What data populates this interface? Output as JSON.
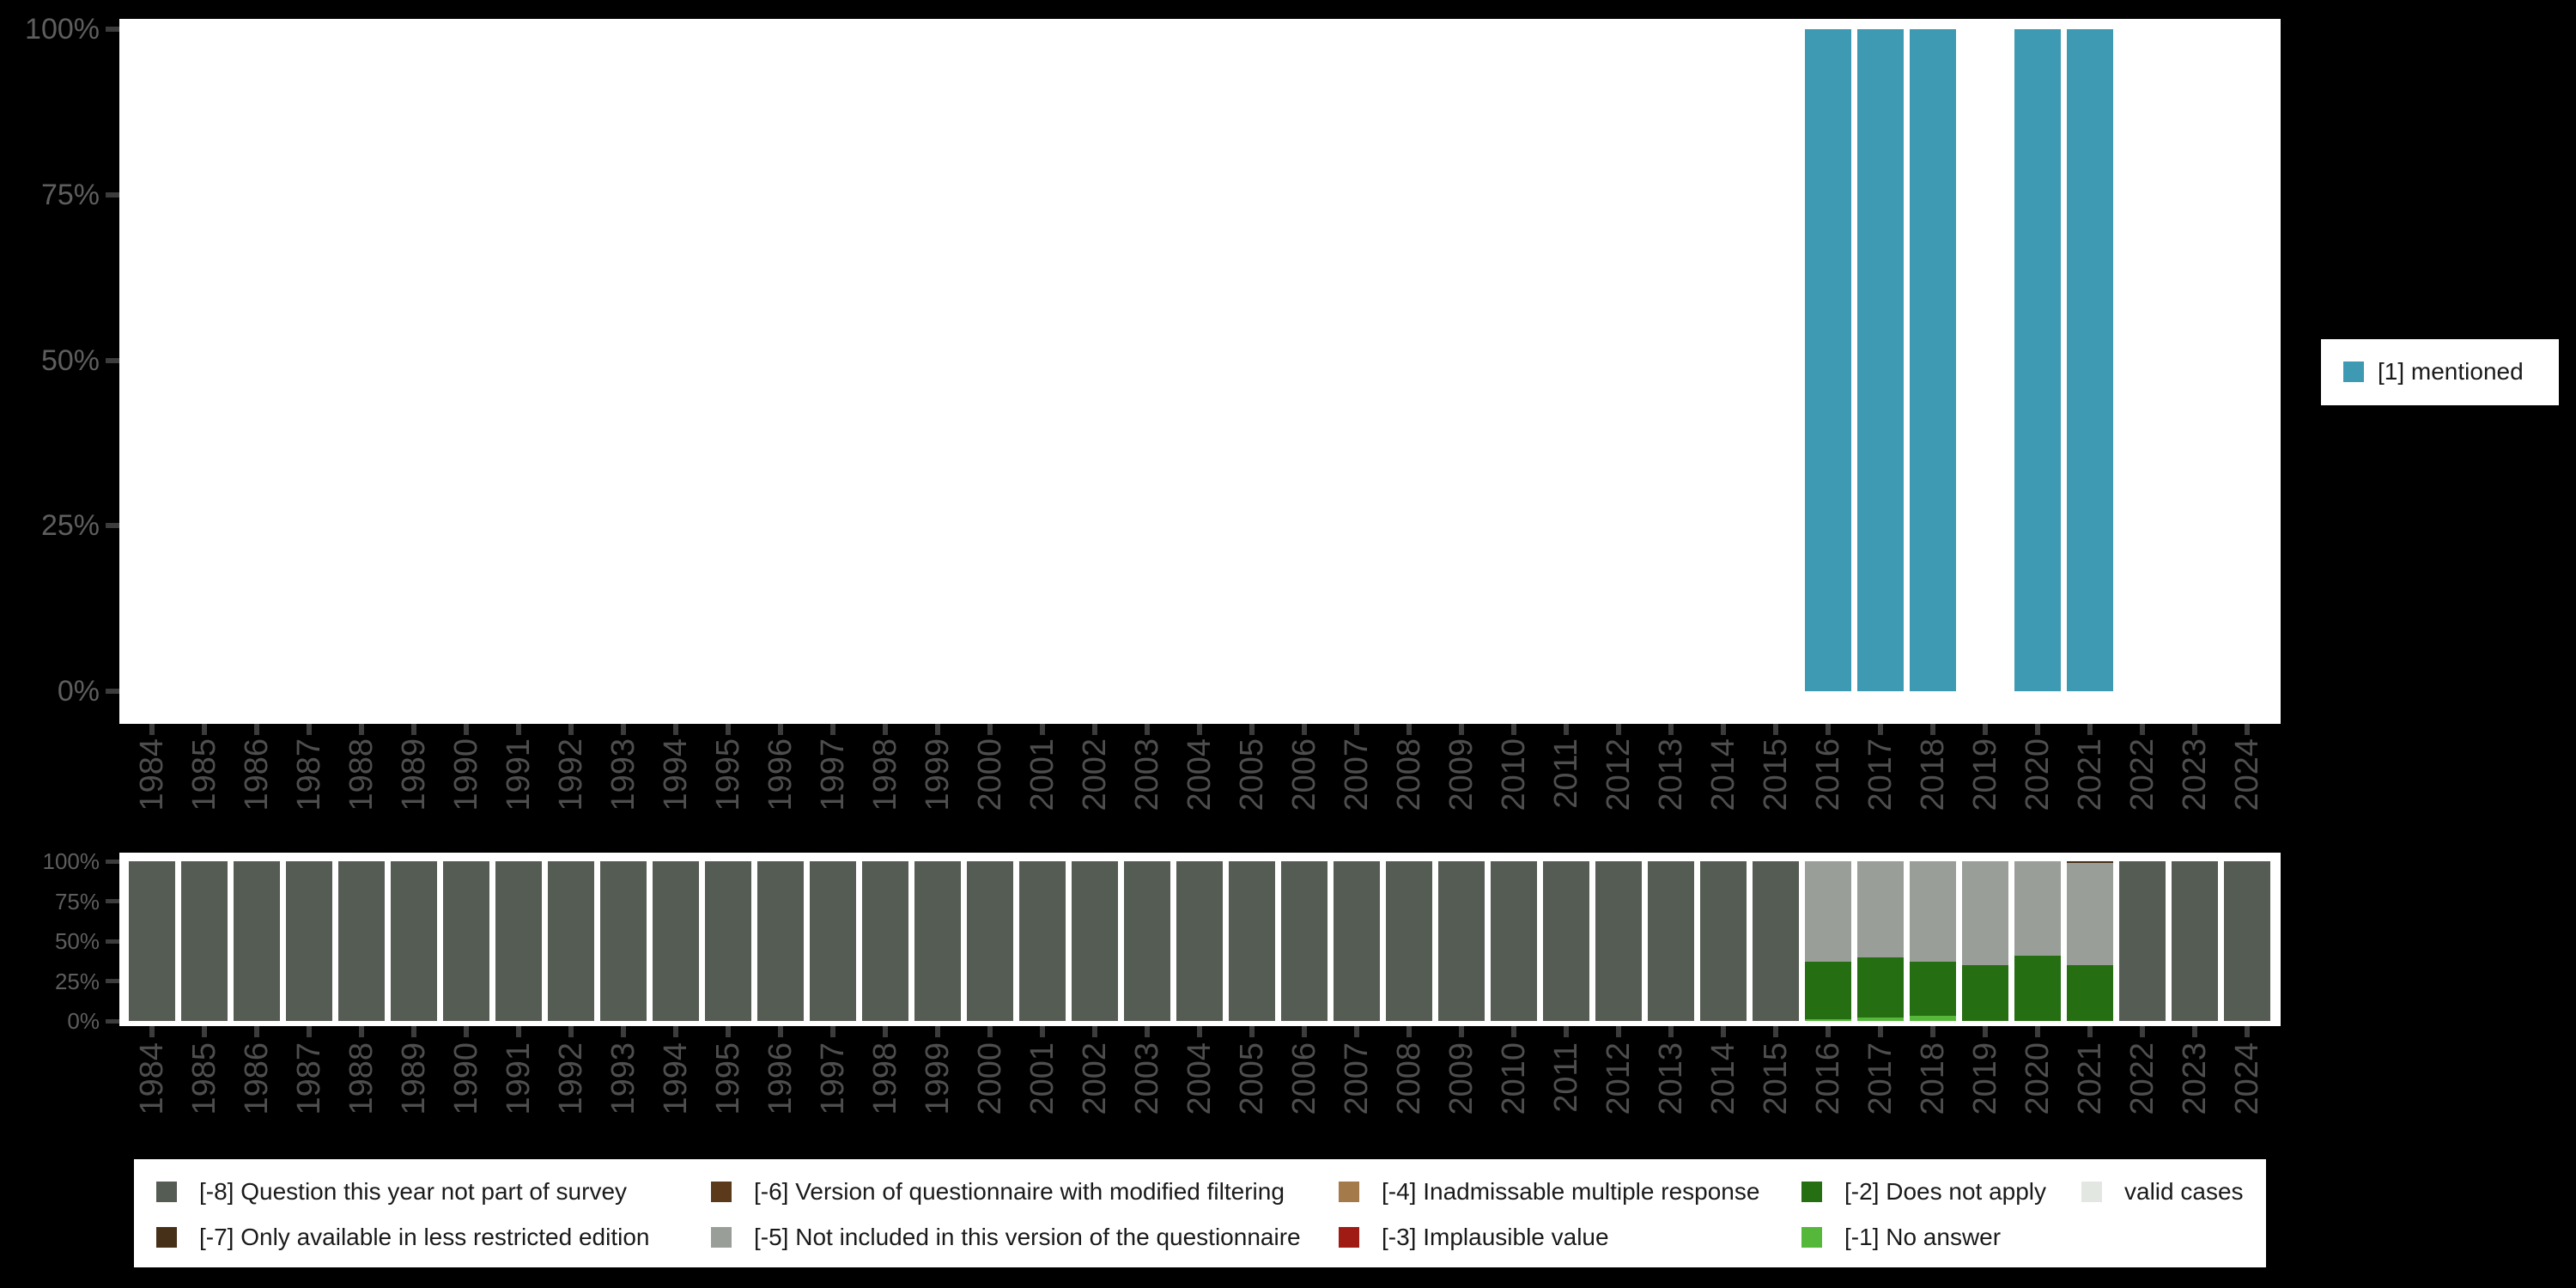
{
  "background_color": "#000000",
  "panel_color": "#FFFFFF",
  "axis": {
    "tick_color": "#3C3C3C",
    "y_label_color": "#5E5E5E",
    "x_label_color": "#4E4E4E",
    "yticks": [
      "0%",
      "25%",
      "50%",
      "75%",
      "100%"
    ]
  },
  "years": [
    1984,
    1985,
    1986,
    1987,
    1988,
    1989,
    1990,
    1991,
    1992,
    1993,
    1994,
    1995,
    1996,
    1997,
    1998,
    1999,
    2000,
    2001,
    2002,
    2003,
    2004,
    2005,
    2006,
    2007,
    2008,
    2009,
    2010,
    2011,
    2012,
    2013,
    2014,
    2015,
    2016,
    2017,
    2018,
    2019,
    2020,
    2021,
    2022,
    2023,
    2024
  ],
  "chart_data": [
    {
      "name": "value-distribution-over-years",
      "type": "bar",
      "stacked": true,
      "categories": [
        1984,
        1985,
        1986,
        1987,
        1988,
        1989,
        1990,
        1991,
        1992,
        1993,
        1994,
        1995,
        1996,
        1997,
        1998,
        1999,
        2000,
        2001,
        2002,
        2003,
        2004,
        2005,
        2006,
        2007,
        2008,
        2009,
        2010,
        2011,
        2012,
        2013,
        2014,
        2015,
        2016,
        2017,
        2018,
        2019,
        2020,
        2021,
        2022,
        2023,
        2024
      ],
      "ylim": [
        0,
        100
      ],
      "yticks": [
        "0%",
        "25%",
        "50%",
        "75%",
        "100%"
      ],
      "grid": false,
      "legend_position": "right",
      "series": [
        {
          "name": "[1] mentioned",
          "color": "#3D9AB2",
          "values_pct_by_year": {
            "2016": 100,
            "2017": 100,
            "2018": 100,
            "2020": 100,
            "2021": 100
          }
        }
      ]
    },
    {
      "name": "missing-values-composition-over-years",
      "type": "bar",
      "stacked": true,
      "categories": [
        1984,
        1985,
        1986,
        1987,
        1988,
        1989,
        1990,
        1991,
        1992,
        1993,
        1994,
        1995,
        1996,
        1997,
        1998,
        1999,
        2000,
        2001,
        2002,
        2003,
        2004,
        2005,
        2006,
        2007,
        2008,
        2009,
        2010,
        2011,
        2012,
        2013,
        2014,
        2015,
        2016,
        2017,
        2018,
        2019,
        2020,
        2021,
        2022,
        2023,
        2024
      ],
      "ylim": [
        0,
        100
      ],
      "yticks": [
        "0%",
        "25%",
        "50%",
        "75%",
        "100%"
      ],
      "grid": false,
      "legend_position": "bottom",
      "series": [
        {
          "name": "[-1] No answer",
          "color": "#56B83B",
          "values_pct_by_year": {
            "2016": 1,
            "2017": 2,
            "2018": 3
          }
        },
        {
          "name": "[-2] Does not apply",
          "color": "#256E11",
          "values_pct_by_year": {
            "2016": 36,
            "2017": 38,
            "2018": 34,
            "2019": 35,
            "2020": 41,
            "2021": 35
          }
        },
        {
          "name": "[-5] Not included in this version of the questionnaire",
          "color": "#999F98",
          "values_pct_by_year": {
            "2016": 63,
            "2017": 60,
            "2018": 63,
            "2019": 65,
            "2020": 59,
            "2021": 64
          }
        },
        {
          "name": "[-7] Only available in less restricted edition",
          "color": "#473018",
          "values_pct_by_year": {
            "2021": 1
          }
        },
        {
          "name": "[-8] Question this year not part of survey",
          "color": "#555C53",
          "values_pct_by_year": {
            "1984": 100,
            "1985": 100,
            "1986": 100,
            "1987": 100,
            "1988": 100,
            "1989": 100,
            "1990": 100,
            "1991": 100,
            "1992": 100,
            "1993": 100,
            "1994": 100,
            "1995": 100,
            "1996": 100,
            "1997": 100,
            "1998": 100,
            "1999": 100,
            "2000": 100,
            "2001": 100,
            "2002": 100,
            "2003": 100,
            "2004": 100,
            "2005": 100,
            "2006": 100,
            "2007": 100,
            "2008": 100,
            "2009": 100,
            "2010": 100,
            "2011": 100,
            "2012": 100,
            "2013": 100,
            "2014": 100,
            "2015": 100,
            "2022": 100,
            "2023": 100,
            "2024": 100
          }
        }
      ]
    }
  ],
  "legend_right": {
    "items": [
      {
        "label": "[1] mentioned",
        "color": "#3D9AB2"
      }
    ]
  },
  "legend_bottom": {
    "text_color": "#1A1A1A",
    "columns": [
      {
        "items": [
          {
            "label": "[-8] Question this year not part of survey",
            "color": "#555C53"
          },
          {
            "label": "[-7] Only available in less restricted edition",
            "color": "#473018"
          }
        ]
      },
      {
        "items": [
          {
            "label": "[-6] Version of questionnaire with modified filtering",
            "color": "#5A3A1B"
          },
          {
            "label": "[-5] Not included in this version of the questionnaire",
            "color": "#999F98"
          }
        ]
      },
      {
        "items": [
          {
            "label": "[-4] Inadmissable multiple response",
            "color": "#A47A4A"
          },
          {
            "label": "[-3] Implausible value",
            "color": "#A11B15"
          }
        ]
      },
      {
        "items": [
          {
            "label": "[-2] Does not apply",
            "color": "#256E11"
          },
          {
            "label": "[-1] No answer",
            "color": "#56B83B"
          }
        ]
      },
      {
        "items": [
          {
            "label": "valid cases",
            "color": "#E3E7E1"
          }
        ]
      }
    ]
  }
}
